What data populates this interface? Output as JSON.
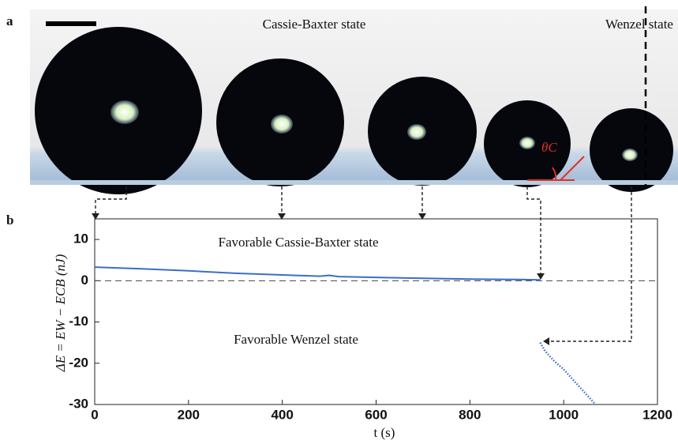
{
  "panel_a": {
    "label": "a",
    "left_title": "Cassie-Baxter state",
    "right_title": "Wenzel state",
    "angle_label": "θC"
  },
  "chart_data": {
    "type": "line",
    "panel_label": "b",
    "xlabel": "t (s)",
    "ylabel": "ΔE = EW − ECB (nJ)",
    "annotations": [
      "Favorable Cassie-Baxter state",
      "Favorable Wenzel state"
    ],
    "xlim": [
      0,
      1200
    ],
    "ylim": [
      -30,
      15
    ],
    "xticks": [
      0,
      200,
      400,
      600,
      800,
      1000,
      1200
    ],
    "yticks": [
      -30,
      -20,
      -10,
      0,
      10
    ],
    "zero_line": true,
    "series": [
      {
        "color": "#3a6fc4",
        "style": "solid",
        "x": [
          0,
          100,
          200,
          300,
          400,
          480,
          500,
          520,
          600,
          700,
          800,
          900,
          950
        ],
        "values": [
          3.3,
          2.9,
          2.4,
          1.8,
          1.4,
          1.1,
          1.3,
          1.0,
          0.8,
          0.6,
          0.4,
          0.3,
          0.2
        ]
      },
      {
        "color": "#3a6fc4",
        "style": "dotted",
        "x": [
          950,
          960,
          980,
          1000,
          1020,
          1040,
          1060,
          1068
        ],
        "values": [
          -15,
          -17,
          -19.5,
          -21.5,
          -24,
          -26.5,
          -29,
          -30
        ]
      }
    ]
  }
}
